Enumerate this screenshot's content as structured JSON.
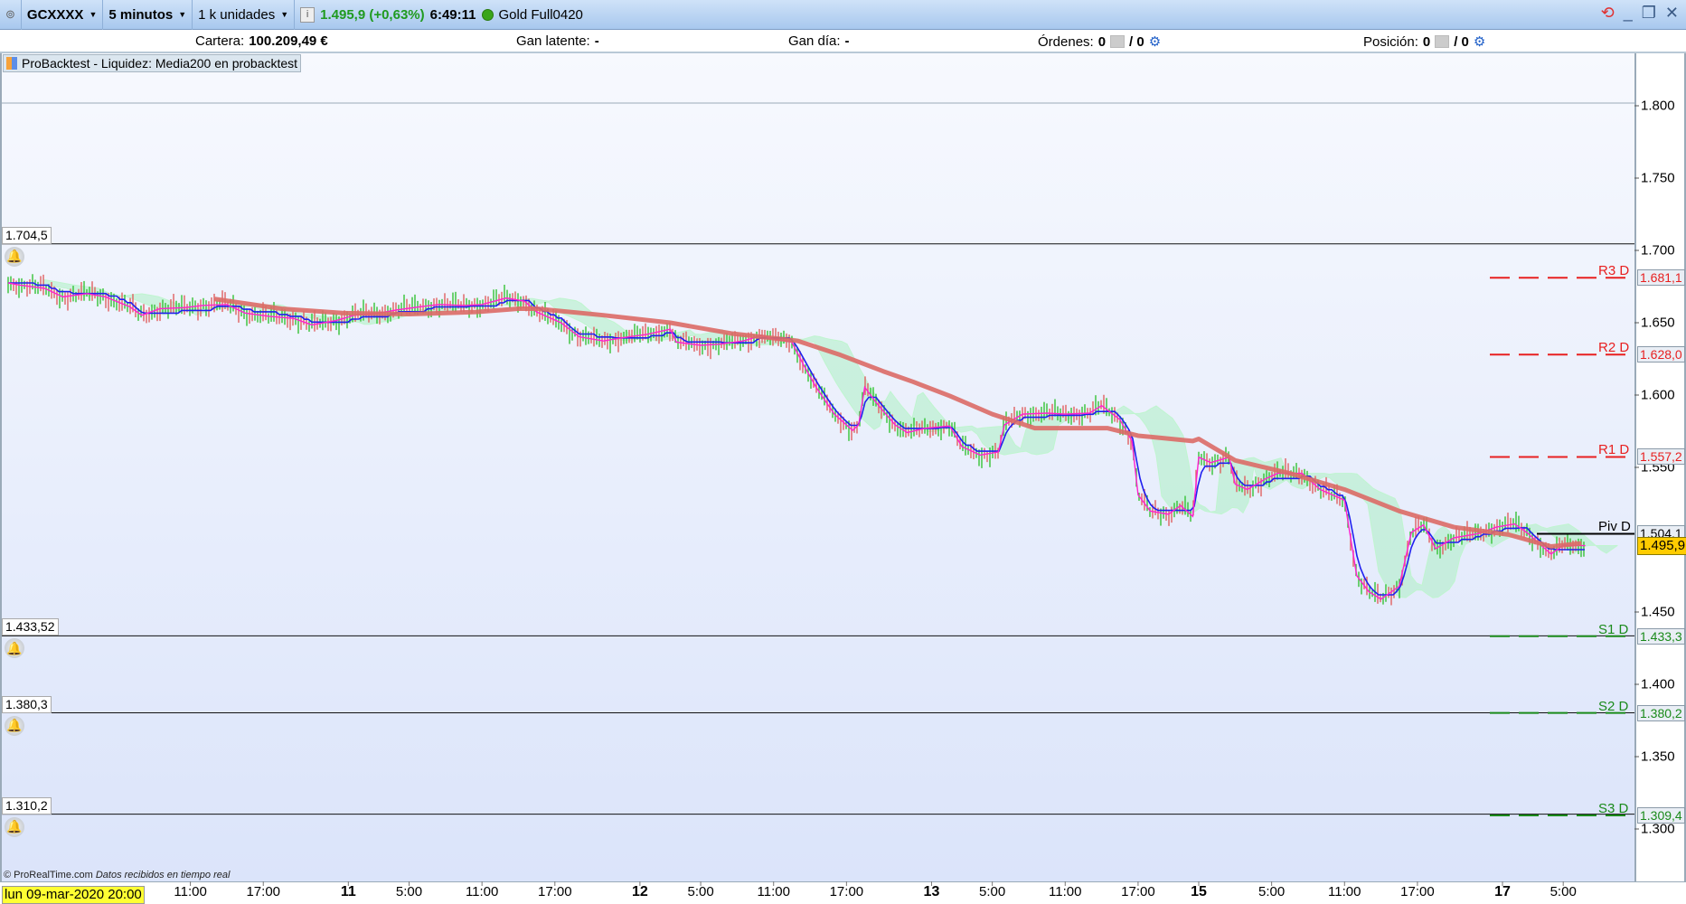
{
  "toolbar": {
    "symbol": "GCXXXX",
    "timeframe": "5 minutos",
    "units": "1 k unidades",
    "price": "1.495,9 (+0,63%)",
    "time": "6:49:11",
    "instrument": "Gold Full0420",
    "status_color": "#3aa51a"
  },
  "status": {
    "cartera_label": "Cartera:",
    "cartera_value": "100.209,49 €",
    "gan_latente_label": "Gan latente:",
    "gan_latente_value": "-",
    "gan_dia_label": "Gan día:",
    "gan_dia_value": "-",
    "ordenes_label": "Órdenes:",
    "ordenes_value": "0",
    "ordenes_total": "/ 0",
    "posicion_label": "Posición:",
    "posicion_value": "0",
    "posicion_total": "/ 0"
  },
  "legend": "ProBacktest - Liquidez: Media200 en probacktest",
  "alerts": [
    {
      "label": "1.704,5",
      "price": 1704.5
    },
    {
      "label": "1.433,52",
      "price": 1433.52
    },
    {
      "label": "1.380,3",
      "price": 1380.3
    },
    {
      "label": "1.310,2",
      "price": 1310.2
    }
  ],
  "footer": {
    "credit": "© ProRealTime.com",
    "realtime": "Datos recibidos en tiempo real",
    "start_date": "lun 09-mar-2020 20:00"
  },
  "chart_data": {
    "type": "line",
    "title": "",
    "ylim": [
      1260,
      1830
    ],
    "y_ticks": [
      {
        "label": "1.800",
        "value": 1800
      },
      {
        "label": "1.750",
        "value": 1750
      },
      {
        "label": "1.700",
        "value": 1700
      },
      {
        "label": "1.650",
        "value": 1650
      },
      {
        "label": "1.600",
        "value": 1600
      },
      {
        "label": "1.550",
        "value": 1550
      },
      {
        "label": "1.450",
        "value": 1450
      },
      {
        "label": "1.400",
        "value": 1400
      },
      {
        "label": "1.350",
        "value": 1350
      },
      {
        "label": "1.300",
        "value": 1300
      }
    ],
    "x_ticks": [
      {
        "label": "11:00",
        "t": "2020-03-10 11:00",
        "bold": false
      },
      {
        "label": "17:00",
        "t": "2020-03-10 17:00",
        "bold": false
      },
      {
        "label": "11",
        "t": "2020-03-11 00:00",
        "bold": true
      },
      {
        "label": "5:00",
        "t": "2020-03-11 05:00",
        "bold": false
      },
      {
        "label": "11:00",
        "t": "2020-03-11 11:00",
        "bold": false
      },
      {
        "label": "17:00",
        "t": "2020-03-11 17:00",
        "bold": false
      },
      {
        "label": "12",
        "t": "2020-03-12 00:00",
        "bold": true
      },
      {
        "label": "5:00",
        "t": "2020-03-12 05:00",
        "bold": false
      },
      {
        "label": "11:00",
        "t": "2020-03-12 11:00",
        "bold": false
      },
      {
        "label": "17:00",
        "t": "2020-03-12 17:00",
        "bold": false
      },
      {
        "label": "13",
        "t": "2020-03-13 00:00",
        "bold": true
      },
      {
        "label": "5:00",
        "t": "2020-03-13 05:00",
        "bold": false
      },
      {
        "label": "11:00",
        "t": "2020-03-13 11:00",
        "bold": false
      },
      {
        "label": "17:00",
        "t": "2020-03-13 17:00",
        "bold": false
      },
      {
        "label": "15",
        "t": "2020-03-15 23:00",
        "bold": true
      },
      {
        "label": "5:00",
        "t": "2020-03-16 05:00",
        "bold": false
      },
      {
        "label": "11:00",
        "t": "2020-03-16 11:00",
        "bold": false
      },
      {
        "label": "17:00",
        "t": "2020-03-16 17:00",
        "bold": false
      },
      {
        "label": "17",
        "t": "2020-03-17 00:00",
        "bold": true
      },
      {
        "label": "5:00",
        "t": "2020-03-17 05:00",
        "bold": false
      }
    ],
    "last_price": {
      "label": "1.495,9",
      "value": 1495.9
    },
    "pivots": [
      {
        "name": "R3 D",
        "label": "1.681,1",
        "value": 1681.1,
        "color": "#e82020"
      },
      {
        "name": "R2 D",
        "label": "1.628,0",
        "value": 1628.0,
        "color": "#e82020"
      },
      {
        "name": "R1 D",
        "label": "1.557,2",
        "value": 1557.2,
        "color": "#e82020"
      },
      {
        "name": "Piv D",
        "label": "1.504,1",
        "value": 1504.1,
        "color": "#000000"
      },
      {
        "name": "S1 D",
        "label": "1.433,3",
        "value": 1433.3,
        "color": "#1a8a1a"
      },
      {
        "name": "S2 D",
        "label": "1.380,2",
        "value": 1380.2,
        "color": "#1a8a1a"
      },
      {
        "name": "S3 D",
        "label": "1.309,4",
        "value": 1309.4,
        "color": "#1a8a1a"
      }
    ],
    "series": [
      {
        "style": "price",
        "color": "#ff20d0",
        "points": [
          [
            "2020-03-09 20:00",
            1677.5
          ],
          [
            "2020-03-09 21:00",
            1676.0
          ],
          [
            "2020-03-09 23:00",
            1673.8
          ],
          [
            "2020-03-10 00:30",
            1667.9
          ],
          [
            "2020-03-10 02:30",
            1670.1
          ],
          [
            "2020-03-10 04:00",
            1667.9
          ],
          [
            "2020-03-10 06:00",
            1661.1
          ],
          [
            "2020-03-10 07:00",
            1655.2
          ],
          [
            "2020-03-10 08:30",
            1659.7
          ],
          [
            "2020-03-10 10:30",
            1660.4
          ],
          [
            "2020-03-10 12:00",
            1661.9
          ],
          [
            "2020-03-10 14:00",
            1662.6
          ],
          [
            "2020-03-10 15:30",
            1656.7
          ],
          [
            "2020-03-10 17:30",
            1654.4
          ],
          [
            "2020-03-10 19:30",
            1653.0
          ],
          [
            "2020-03-10 21:00",
            1648.5
          ],
          [
            "2020-03-10 23:00",
            1651.5
          ],
          [
            "2020-03-11 00:30",
            1655.2
          ],
          [
            "2020-03-11 02:30",
            1656.7
          ],
          [
            "2020-03-11 04:00",
            1658.9
          ],
          [
            "2020-03-11 06:00",
            1661.1
          ],
          [
            "2020-03-11 07:30",
            1662.6
          ],
          [
            "2020-03-11 09:30",
            1661.9
          ],
          [
            "2020-03-11 11:00",
            1662.6
          ],
          [
            "2020-03-11 13:00",
            1667.1
          ],
          [
            "2020-03-11 14:30",
            1664.9
          ],
          [
            "2020-03-11 15:30",
            1657.4
          ],
          [
            "2020-03-11 17:30",
            1650.0
          ],
          [
            "2020-03-11 19:00",
            1640.3
          ],
          [
            "2020-03-11 21:00",
            1637.4
          ],
          [
            "2020-03-11 22:30",
            1639.6
          ],
          [
            "2020-03-12 00:30",
            1641.8
          ],
          [
            "2020-03-12 02:30",
            1645.5
          ],
          [
            "2020-03-12 03:00",
            1636.6
          ],
          [
            "2020-03-12 05:00",
            1634.4
          ],
          [
            "2020-03-12 06:30",
            1635.1
          ],
          [
            "2020-03-12 08:30",
            1637.4
          ],
          [
            "2020-03-12 10:00",
            1641.1
          ],
          [
            "2020-03-12 11:00",
            1638.8
          ],
          [
            "2020-03-12 12:30",
            1636.6
          ],
          [
            "2020-03-12 13:30",
            1620.3
          ],
          [
            "2020-03-12 14:30",
            1605.4
          ],
          [
            "2020-03-12 16:00",
            1586.8
          ],
          [
            "2020-03-12 17:30",
            1575.6
          ],
          [
            "2020-03-12 18:00",
            1579.4
          ],
          [
            "2020-03-12 18:30",
            1605.4
          ],
          [
            "2020-03-12 19:30",
            1594.2
          ],
          [
            "2020-03-12 21:00",
            1579.4
          ],
          [
            "2020-03-12 22:00",
            1574.1
          ],
          [
            "2020-03-12 23:30",
            1577.1
          ],
          [
            "2020-03-13 01:30",
            1578.6
          ],
          [
            "2020-03-13 02:30",
            1564.4
          ],
          [
            "2020-03-13 04:00",
            1558.5
          ],
          [
            "2020-03-13 05:30",
            1560.7
          ],
          [
            "2020-03-13 06:00",
            1579.4
          ],
          [
            "2020-03-13 07:30",
            1586.8
          ],
          [
            "2020-03-13 09:30",
            1587.5
          ],
          [
            "2020-03-13 11:00",
            1586.8
          ],
          [
            "2020-03-13 13:00",
            1587.5
          ],
          [
            "2020-03-13 14:00",
            1592.7
          ],
          [
            "2020-03-13 15:30",
            1583.1
          ],
          [
            "2020-03-13 16:30",
            1568.2
          ],
          [
            "2020-03-13 17:00",
            1531.0
          ],
          [
            "2020-03-13 18:00",
            1519.8
          ],
          [
            "2020-03-13 19:30",
            1517.6
          ],
          [
            "2020-03-13 20:30",
            1523.6
          ],
          [
            "2020-03-13 21:30",
            1516.1
          ],
          [
            "2020-03-15 23:00",
            1557.0
          ],
          [
            "2020-03-16 00:00",
            1553.3
          ],
          [
            "2020-03-16 01:30",
            1557.0
          ],
          [
            "2020-03-16 02:00",
            1538.4
          ],
          [
            "2020-03-16 03:00",
            1534.7
          ],
          [
            "2020-03-16 04:30",
            1542.1
          ],
          [
            "2020-03-16 05:30",
            1545.9
          ],
          [
            "2020-03-16 07:30",
            1545.9
          ],
          [
            "2020-03-16 09:00",
            1534.7
          ],
          [
            "2020-03-16 10:00",
            1531.0
          ],
          [
            "2020-03-16 11:00",
            1527.3
          ],
          [
            "2020-03-16 12:00",
            1475.2
          ],
          [
            "2020-03-16 13:00",
            1464.1
          ],
          [
            "2020-03-16 14:00",
            1458.9
          ],
          [
            "2020-03-16 15:30",
            1467.8
          ],
          [
            "2020-03-16 16:30",
            1505.0
          ],
          [
            "2020-03-16 17:30",
            1510.2
          ],
          [
            "2020-03-16 18:30",
            1493.8
          ],
          [
            "2020-03-16 20:00",
            1501.3
          ],
          [
            "2020-03-16 22:00",
            1504.2
          ],
          [
            "2020-03-16 23:30",
            1508.7
          ],
          [
            "2020-03-17 01:00",
            1510.9
          ],
          [
            "2020-03-17 02:00",
            1505.0
          ],
          [
            "2020-03-17 03:00",
            1497.5
          ],
          [
            "2020-03-17 04:00",
            1490.1
          ],
          [
            "2020-03-17 05:00",
            1496.1
          ],
          [
            "2020-03-17 06:49",
            1495.9
          ]
        ]
      },
      {
        "style": "ma200",
        "color": "#dc6a66",
        "points": [
          [
            "2020-03-10 13:00",
            1666.4
          ],
          [
            "2020-03-10 18:30",
            1659.7
          ],
          [
            "2020-03-10 23:30",
            1656.7
          ],
          [
            "2020-03-11 05:00",
            1655.9
          ],
          [
            "2020-03-11 10:30",
            1657.4
          ],
          [
            "2020-03-11 14:00",
            1659.7
          ],
          [
            "2020-03-11 15:30",
            1659.7
          ],
          [
            "2020-03-11 21:00",
            1655.2
          ],
          [
            "2020-03-12 02:30",
            1650.0
          ],
          [
            "2020-03-12 07:30",
            1642.6
          ],
          [
            "2020-03-12 13:00",
            1637.4
          ],
          [
            "2020-03-12 16:30",
            1627.7
          ],
          [
            "2020-03-12 20:00",
            1616.5
          ],
          [
            "2020-03-12 22:30",
            1609.1
          ],
          [
            "2020-03-13 01:30",
            1599.4
          ],
          [
            "2020-03-13 05:00",
            1586.8
          ],
          [
            "2020-03-13 08:30",
            1577.1
          ],
          [
            "2020-03-13 12:00",
            1577.1
          ],
          [
            "2020-03-13 14:30",
            1577.1
          ],
          [
            "2020-03-13 17:00",
            1571.9
          ],
          [
            "2020-03-13 21:30",
            1568.2
          ],
          [
            "2020-03-15 23:00",
            1569.7
          ],
          [
            "2020-03-16 02:00",
            1554.8
          ],
          [
            "2020-03-16 06:30",
            1545.9
          ],
          [
            "2020-03-16 11:00",
            1534.7
          ],
          [
            "2020-03-16 15:30",
            1519.8
          ],
          [
            "2020-03-16 20:00",
            1508.7
          ],
          [
            "2020-03-17 00:30",
            1503.5
          ],
          [
            "2020-03-17 04:00",
            1495.3
          ],
          [
            "2020-03-17 06:30",
            1497.5
          ]
        ]
      }
    ]
  }
}
